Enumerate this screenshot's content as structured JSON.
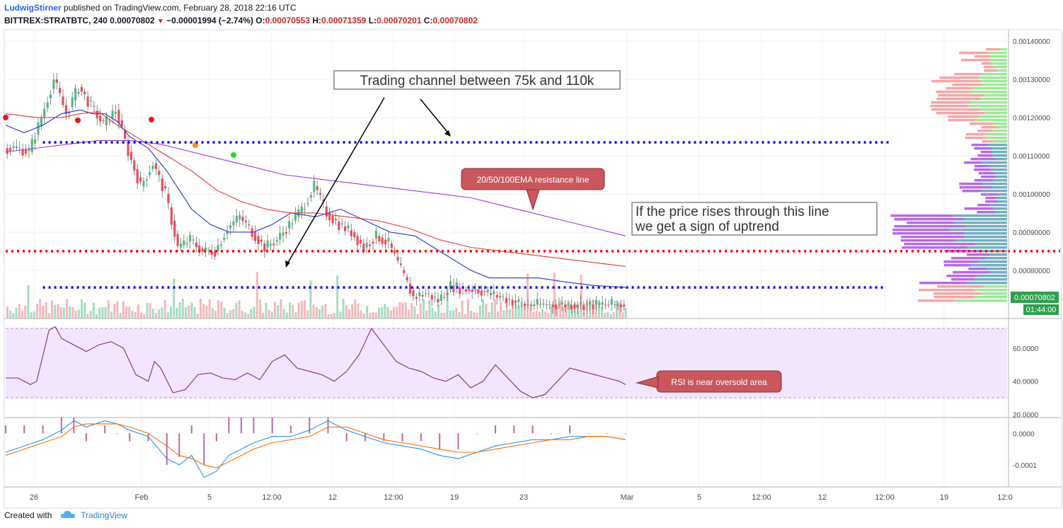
{
  "header": {
    "author": "LudwigStirner",
    "published_text": "published on TradingView.com, February 28, 2018 22:16 UTC",
    "symbol": "BITTREX:STRATBTC, 240",
    "last": "0.00070802",
    "change": "−0.00001994 (−2.74%)",
    "open_label": "O:",
    "open": "0.00070553",
    "high_label": "H:",
    "high": "0.00071359",
    "low_label": "L:",
    "low": "0.00070201",
    "close_label": "C:",
    "close": "0.00070802"
  },
  "footer": {
    "created_with": "Created with",
    "brand": "TradingView"
  },
  "colors": {
    "up": "#8fd3b1",
    "down": "#f2a5a9",
    "ema20": "#2932d8",
    "ema50": "#e53935",
    "ema100": "#9c3bdb",
    "resistance": "#ff0000",
    "channel": "#0000ff",
    "rsi": "#7e2b8e",
    "rsi_band": "#f3e5fb",
    "macd": "#2196f3",
    "signal": "#ff6f00",
    "callout_bg": "#c9575d",
    "last_price_bg": "#2e9f4d"
  },
  "chart_data": [
    {
      "type": "line",
      "panel": "price",
      "ylim": [
        0.00067,
        0.00143
      ],
      "y_ticks": [
        "0.00140000",
        "0.00130000",
        "0.00120000",
        "0.00110000",
        "0.00100000",
        "0.00090000",
        "0.00080000"
      ],
      "x_ticks": [
        "26",
        "Feb",
        "5",
        "12:00",
        "12",
        "12:00",
        "19",
        "23",
        "Mar",
        "5",
        "12:00",
        "12",
        "12:00",
        "19",
        "12:0"
      ],
      "last_price_label": "0.00070802",
      "countdown_label": "01:44:00",
      "series": [
        {
          "name": "",
          "role": "ema20",
          "x": [
            0,
            3,
            6,
            9,
            12,
            14,
            16,
            18,
            20,
            23,
            26,
            28,
            30,
            33,
            36,
            40,
            43,
            46,
            50,
            54,
            58,
            62,
            66,
            70,
            75,
            78,
            82,
            86,
            90,
            95,
            100
          ],
          "y": [
            0.00118,
            0.00116,
            0.00118,
            0.00121,
            0.00122,
            0.00121,
            0.00121,
            0.00119,
            0.00115,
            0.00112,
            0.00106,
            0.00101,
            0.00096,
            0.00092,
            0.0009,
            0.0009,
            0.00092,
            0.00095,
            0.00094,
            0.00096,
            0.00093,
            0.0009,
            0.00089,
            0.00085,
            0.0008,
            0.00078,
            0.00078,
            0.00078,
            0.00077,
            0.00076,
            0.000755
          ]
        },
        {
          "name": "",
          "role": "ema50",
          "x": [
            0,
            5,
            9,
            12,
            15,
            18,
            22,
            26,
            30,
            34,
            38,
            42,
            46,
            50,
            55,
            60,
            65,
            70,
            75,
            80,
            85,
            90,
            95,
            100
          ],
          "y": [
            0.00121,
            0.0012,
            0.0012,
            0.00121,
            0.001215,
            0.00118,
            0.00114,
            0.0011,
            0.00106,
            0.00101,
            0.00098,
            0.00096,
            0.00095,
            0.00095,
            0.00094,
            0.00093,
            0.00091,
            0.00088,
            0.00086,
            0.00085,
            0.00084,
            0.00083,
            0.00082,
            0.00081
          ]
        },
        {
          "name": "",
          "role": "ema100",
          "x": [
            0,
            5,
            10,
            15,
            20,
            25,
            30,
            35,
            40,
            45,
            50,
            55,
            60,
            65,
            70,
            75,
            80,
            85,
            90,
            95,
            100
          ],
          "y": [
            0.00111,
            0.00112,
            0.00113,
            0.00114,
            0.00114,
            0.00113,
            0.00111,
            0.00109,
            0.00107,
            0.00105,
            0.00104,
            0.00103,
            0.00102,
            0.00101,
            0.001,
            0.00099,
            0.00097,
            0.00095,
            0.00093,
            0.00091,
            0.00089
          ]
        }
      ],
      "candles": {
        "x": [
          0,
          2,
          4,
          6,
          8,
          10,
          12,
          14,
          16,
          18,
          20,
          22,
          24,
          26,
          28,
          30,
          32,
          34,
          36,
          38,
          40,
          42,
          44,
          46,
          48,
          50,
          52,
          54,
          56,
          58,
          60,
          62,
          64,
          66,
          68,
          70,
          72,
          74,
          76,
          78,
          80,
          82,
          84,
          86,
          88,
          90,
          92,
          94,
          96,
          98,
          100
        ],
        "close": [
          0.00112,
          0.00112,
          0.00111,
          0.0012,
          0.0013,
          0.00121,
          0.00128,
          0.00123,
          0.00118,
          0.00122,
          0.00111,
          0.00102,
          0.00108,
          0.001,
          0.00086,
          0.00088,
          0.00085,
          0.00085,
          0.00091,
          0.00094,
          0.0009,
          0.00086,
          0.00088,
          0.00092,
          0.00096,
          0.00102,
          0.00095,
          0.00092,
          0.0009,
          0.00086,
          0.00089,
          0.00087,
          0.0008,
          0.00073,
          0.00074,
          0.00072,
          0.00076,
          0.00075,
          0.00075,
          0.00074,
          0.00073,
          0.00072,
          0.00071,
          0.00071,
          0.00071,
          0.00071,
          0.00071,
          0.00071,
          0.00071,
          0.00071,
          0.00071
        ]
      },
      "volume_profile_note": "",
      "annotations": [
        {
          "role": "channel_top",
          "y": 0.001135,
          "x_range": [
            6,
            143
          ]
        },
        {
          "role": "channel_bottom",
          "y": 0.000755,
          "x_range": [
            6,
            143
          ]
        },
        {
          "role": "resistance",
          "y": 0.00085,
          "x_range": [
            0,
            170
          ]
        }
      ]
    },
    {
      "type": "line",
      "panel": "rsi",
      "ylim": [
        18,
        78
      ],
      "y_ticks": [
        "60.0000",
        "40.0000",
        "20.0000"
      ],
      "band": [
        30,
        70
      ],
      "series": [
        {
          "name": "",
          "x": [
            0,
            2,
            4,
            5,
            7,
            8,
            9,
            11,
            13,
            15,
            17,
            19,
            21,
            23,
            24,
            25,
            27,
            29,
            31,
            33,
            35,
            37,
            39,
            41,
            43,
            45,
            47,
            49,
            51,
            53,
            55,
            57,
            59,
            61,
            63,
            65,
            67,
            69,
            71,
            73,
            75,
            77,
            79,
            81,
            83,
            85,
            87,
            89,
            91,
            93,
            95,
            97,
            99,
            100
          ],
          "y": [
            42,
            42,
            38,
            40,
            71,
            73,
            66,
            62,
            58,
            62,
            64,
            60,
            44,
            40,
            52,
            48,
            33,
            35,
            44,
            45,
            42,
            41,
            45,
            41,
            52,
            56,
            48,
            46,
            44,
            40,
            46,
            56,
            72,
            62,
            52,
            48,
            46,
            42,
            40,
            44,
            36,
            40,
            50,
            42,
            34,
            30,
            32,
            40,
            48,
            46,
            44,
            42,
            40,
            38
          ]
        }
      ]
    },
    {
      "type": "line",
      "panel": "macd",
      "ylim": [
        -0.00017,
        5e-05
      ],
      "y_ticks": [
        "0.0000",
        "-0.0001"
      ],
      "series": [
        {
          "name": "",
          "role": "macd",
          "x": [
            0,
            3,
            6,
            9,
            11,
            13,
            16,
            18,
            20,
            23,
            26,
            28,
            30,
            32,
            34,
            36,
            38,
            40,
            43,
            46,
            49,
            52,
            55,
            58,
            61,
            64,
            67,
            70,
            73,
            76,
            79,
            82,
            85,
            88,
            91,
            94,
            97,
            100
          ],
          "y": [
            -6e-05,
            -4e-05,
            -2e-05,
            1e-05,
            4e-05,
            2e-05,
            4e-05,
            3e-05,
            1e-05,
            -1e-05,
            -8e-05,
            -0.0001,
            -7e-05,
            -0.00014,
            -0.00012,
            -7e-05,
            -5e-05,
            -3e-05,
            -1e-05,
            -1e-05,
            1e-05,
            4e-05,
            1e-05,
            -1e-05,
            -3e-05,
            -4e-05,
            -5e-05,
            -7e-05,
            -8e-05,
            -6e-05,
            -4e-05,
            -3e-05,
            -2e-05,
            -2e-05,
            -1e-05,
            -1e-05,
            -1e-05,
            -2e-05
          ]
        },
        {
          "name": "",
          "role": "signal",
          "x": [
            0,
            3,
            6,
            9,
            11,
            13,
            16,
            18,
            20,
            23,
            26,
            28,
            30,
            32,
            34,
            36,
            38,
            40,
            43,
            46,
            49,
            52,
            55,
            58,
            61,
            64,
            67,
            70,
            73,
            76,
            79,
            82,
            85,
            88,
            91,
            94,
            97,
            100
          ],
          "y": [
            -7e-05,
            -5e-05,
            -3e-05,
            -1e-05,
            2e-05,
            3e-05,
            3e-05,
            3e-05,
            2e-05,
            0.0,
            -4e-05,
            -7e-05,
            -8e-05,
            -0.0001,
            -0.00011,
            -9e-05,
            -7e-05,
            -5e-05,
            -3e-05,
            -2e-05,
            -1e-05,
            2e-05,
            2e-05,
            0.0,
            -2e-05,
            -3e-05,
            -4e-05,
            -5e-05,
            -6e-05,
            -6e-05,
            -5e-05,
            -4e-05,
            -3e-05,
            -2e-05,
            -2e-05,
            -1e-05,
            -1e-05,
            -2e-05
          ]
        }
      ]
    }
  ],
  "annotations": {
    "channel_text": "Trading channel between 75k and 110k",
    "ema_callout": "20/50/100EMA resistance line",
    "uptrend_line1": "If the price rises through this line",
    "uptrend_line2": "we get a sign of uptrend",
    "rsi_callout": "RSI is near oversold area"
  }
}
